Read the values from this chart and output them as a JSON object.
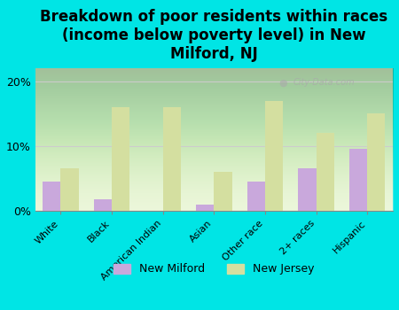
{
  "title": "Breakdown of poor residents within races\n(income below poverty level) in New\nMilford, NJ",
  "categories": [
    "White",
    "Black",
    "American Indian",
    "Asian",
    "Other race",
    "2+ races",
    "Hispanic"
  ],
  "new_milford": [
    4.5,
    1.8,
    0.0,
    1.0,
    4.5,
    6.5,
    9.5
  ],
  "new_jersey": [
    6.5,
    16.0,
    16.0,
    6.0,
    17.0,
    12.0,
    15.0
  ],
  "milford_color": "#c9a8dc",
  "jersey_color": "#d4dfa0",
  "background_color": "#00e5e5",
  "plot_bg": "#e8f5d0",
  "ylim": [
    0,
    22
  ],
  "yticks": [
    0,
    10,
    20
  ],
  "ytick_labels": [
    "0%",
    "10%",
    "20%"
  ],
  "grid_color": "#cccccc",
  "title_fontsize": 12,
  "legend_labels": [
    "New Milford",
    "New Jersey"
  ]
}
